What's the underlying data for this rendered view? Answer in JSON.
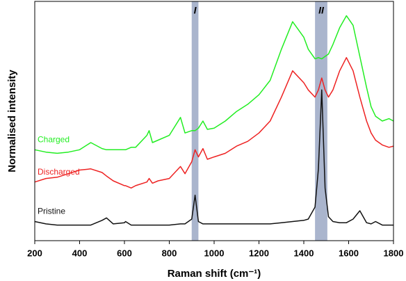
{
  "chart_data": {
    "type": "line",
    "xlabel": "Raman shift (cm⁻¹)",
    "ylabel": "Normalised intensity",
    "x": [
      200,
      250,
      300,
      350,
      400,
      450,
      500,
      520,
      550,
      600,
      605,
      630,
      650,
      700,
      710,
      725,
      750,
      800,
      850,
      870,
      900,
      915,
      930,
      950,
      970,
      1000,
      1050,
      1100,
      1150,
      1200,
      1250,
      1300,
      1350,
      1400,
      1420,
      1450,
      1465,
      1480,
      1495,
      1510,
      1530,
      1560,
      1590,
      1620,
      1650,
      1680,
      1700,
      1720,
      1750,
      1780,
      1800
    ],
    "series": [
      {
        "name": "Charged",
        "color": "#22ee22",
        "values": [
          38,
          37,
          36.5,
          37,
          38,
          41,
          38.5,
          38,
          38,
          38,
          38,
          39,
          39,
          44,
          46,
          41,
          42,
          44,
          51.5,
          45,
          46,
          46,
          47,
          50,
          46.5,
          47,
          50,
          54,
          57,
          61,
          67,
          80,
          91.5,
          85,
          80,
          76,
          76.5,
          76,
          77,
          78,
          82,
          89,
          94,
          90,
          77,
          64,
          56,
          52,
          50,
          51,
          50
        ]
      },
      {
        "name": "Discharged",
        "color": "#ee2222",
        "values": [
          24.5,
          26,
          26.5,
          28,
          29.5,
          30,
          28.5,
          27,
          25,
          23,
          23,
          22,
          23,
          24.5,
          26,
          24,
          25,
          26,
          31,
          28,
          33,
          38,
          35,
          38.5,
          34,
          35,
          36.5,
          39.5,
          41.5,
          45,
          50,
          60,
          71,
          66,
          63,
          60,
          63,
          68,
          63,
          60,
          63,
          71,
          76.5,
          71,
          60,
          50,
          45,
          42,
          40,
          39,
          39.5
        ]
      },
      {
        "name": "Pristine",
        "color": "#111111",
        "values": [
          8,
          7,
          6.5,
          6.5,
          6.5,
          6.5,
          8.5,
          9.5,
          7,
          7.5,
          8,
          6.5,
          6.5,
          6.5,
          6.5,
          6.5,
          6.5,
          6.5,
          7,
          7,
          9,
          19,
          8,
          7,
          7,
          7,
          7,
          7,
          7,
          7,
          7,
          7.5,
          8,
          8.5,
          9,
          14,
          30,
          63,
          22,
          10,
          8,
          7.5,
          7.5,
          9,
          12.5,
          7.5,
          7,
          8,
          6.5,
          6.5,
          6.5
        ]
      }
    ],
    "bands": [
      {
        "label": "I",
        "range": [
          900,
          930
        ]
      },
      {
        "label": "II",
        "range": [
          1450,
          1505
        ]
      }
    ],
    "band_color": "#8e9cbc",
    "xlim": [
      200,
      1800
    ],
    "xticks": [
      200,
      400,
      600,
      800,
      1000,
      1200,
      1400,
      1600,
      1800
    ],
    "ylim": [
      0,
      100
    ]
  }
}
